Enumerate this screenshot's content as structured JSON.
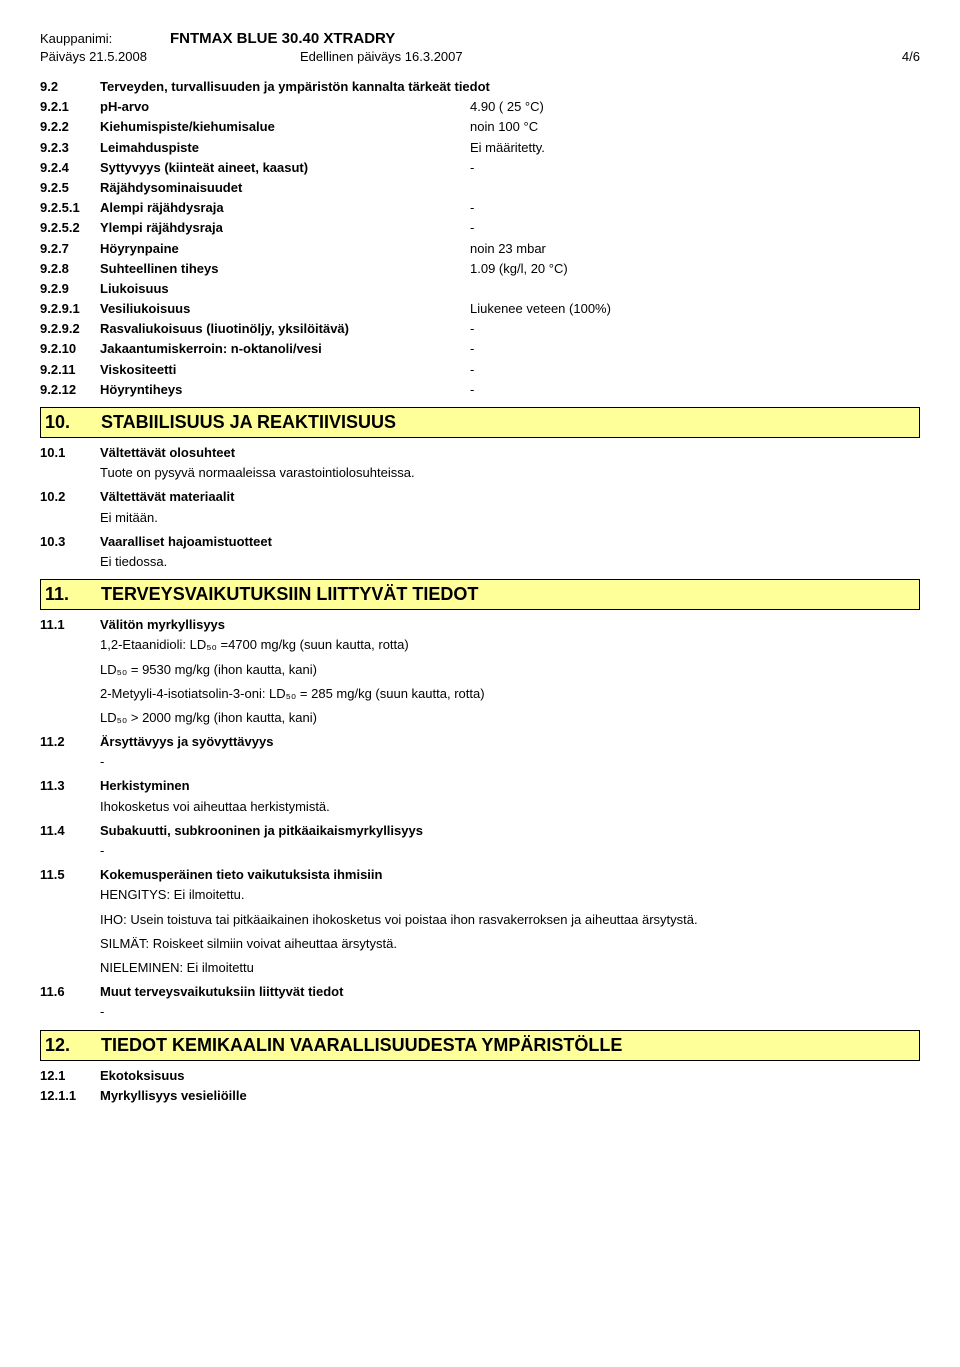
{
  "header": {
    "kauppanimi_label": "Kauppanimi:",
    "kauppanimi_value": "FNTMAX BLUE 30.40 XTRADRY",
    "date_left": "Päiväys 21.5.2008",
    "date_mid": "Edellinen päiväys 16.3.2007",
    "pagenum": "4/6"
  },
  "rows9": [
    {
      "num": "9.2",
      "label": "Terveyden, turvallisuuden ja ympäristön kannalta tärkeät tiedot",
      "value": ""
    },
    {
      "num": "9.2.1",
      "label": "pH-arvo",
      "value": "4.90 ( 25 °C)"
    },
    {
      "num": "9.2.2",
      "label": "Kiehumispiste/kiehumisalue",
      "value": "noin 100 °C"
    },
    {
      "num": "9.2.3",
      "label": "Leimahduspiste",
      "value": "Ei määritetty."
    },
    {
      "num": "9.2.4",
      "label": "Syttyvyys (kiinteät aineet, kaasut)",
      "value": "-"
    },
    {
      "num": "9.2.5",
      "label": "Räjähdysominaisuudet",
      "value": ""
    },
    {
      "num": "9.2.5.1",
      "label": "Alempi räjähdysraja",
      "value": "-"
    },
    {
      "num": "9.2.5.2",
      "label": "Ylempi räjähdysraja",
      "value": "-"
    },
    {
      "num": "9.2.7",
      "label": "Höyrynpaine",
      "value": "noin 23 mbar"
    },
    {
      "num": "9.2.8",
      "label": "Suhteellinen tiheys",
      "value": "1.09  (kg/l, 20 °C)"
    },
    {
      "num": "9.2.9",
      "label": "Liukoisuus",
      "value": ""
    },
    {
      "num": "9.2.9.1",
      "label": "Vesiliukoisuus",
      "value": "Liukenee veteen (100%)"
    },
    {
      "num": "9.2.9.2",
      "label": "Rasvaliukoisuus (liuotinöljy, yksilöitävä)",
      "value": "-"
    },
    {
      "num": "9.2.10",
      "label": "Jakaantumiskerroin: n-oktanoli/vesi",
      "value": "-"
    },
    {
      "num": "9.2.11",
      "label": "Viskositeetti",
      "value": "-"
    },
    {
      "num": "9.2.12",
      "label": "Höyryntiheys",
      "value": "-"
    }
  ],
  "section10": {
    "num": "10.",
    "title": "STABIILISUUS JA REAKTIIVISUUS"
  },
  "sec10_items": [
    {
      "num": "10.1",
      "label": "Vältettävät olosuhteet",
      "body": "Tuote on pysyvä normaaleissa varastointiolosuhteissa."
    },
    {
      "num": "10.2",
      "label": "Vältettävät materiaalit",
      "body": "Ei mitään."
    },
    {
      "num": "10.3",
      "label": "Vaaralliset hajoamistuotteet",
      "body": "Ei tiedossa."
    }
  ],
  "section11": {
    "num": "11.",
    "title": "TERVEYSVAIKUTUKSIIN LIITTYVÄT TIEDOT"
  },
  "sec11": {
    "i1": {
      "num": "11.1",
      "label": "Välitön myrkyllisyys",
      "l1": "1,2-Etaanidioli: LD₅₀ =4700 mg/kg (suun kautta, rotta)",
      "l2": "LD₅₀ = 9530 mg/kg (ihon kautta, kani)",
      "l3": "2-Metyyli-4-isotiatsolin-3-oni: LD₅₀ = 285 mg/kg (suun kautta, rotta)",
      "l4": "LD₅₀  > 2000 mg/kg (ihon kautta, kani)"
    },
    "i2": {
      "num": "11.2",
      "label": "Ärsyttävyys ja syövyttävyys",
      "body": "-"
    },
    "i3": {
      "num": "11.3",
      "label": "Herkistyminen",
      "body": "Ihokosketus voi aiheuttaa herkistymistä."
    },
    "i4": {
      "num": "11.4",
      "label": "Subakuutti, subkrooninen ja pitkäaikaismyrkyllisyys",
      "body": "-"
    },
    "i5": {
      "num": "11.5",
      "label": "Kokemusperäinen tieto vaikutuksista ihmisiin",
      "l1": "HENGITYS: Ei ilmoitettu.",
      "l2": "IHO: Usein toistuva tai pitkäaikainen ihokosketus voi poistaa ihon rasvakerroksen ja aiheuttaa ärsytystä.",
      "l3": "SILMÄT: Roiskeet silmiin voivat aiheuttaa ärsytystä.",
      "l4": "NIELEMINEN: Ei ilmoitettu"
    },
    "i6": {
      "num": "11.6",
      "label": "Muut terveysvaikutuksiin liittyvät tiedot",
      "body": "-"
    }
  },
  "section12": {
    "num": "12.",
    "title": "TIEDOT KEMIKAALIN VAARALLISUUDESTA YMPÄRISTÖLLE"
  },
  "sec12_items": [
    {
      "num": "12.1",
      "label": "Ekotoksisuus"
    },
    {
      "num": "12.1.1",
      "label": "Myrkyllisyys vesieliöille"
    }
  ]
}
